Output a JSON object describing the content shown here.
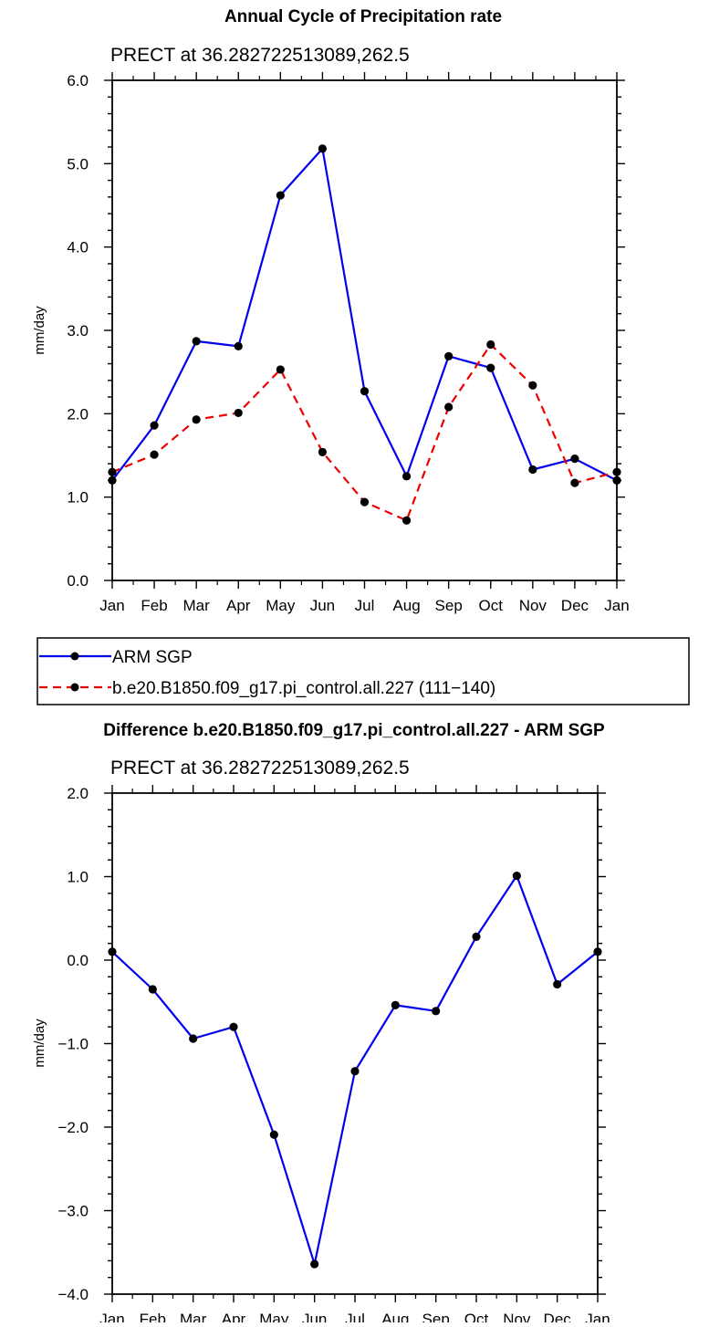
{
  "chart_data": [
    {
      "type": "line",
      "title": "Annual Cycle of Precipitation rate",
      "subtitle": "PRECT at 36.282722513089,262.5",
      "xlabel": "",
      "ylabel": "mm/day",
      "categories": [
        "Jan",
        "Feb",
        "Mar",
        "Apr",
        "May",
        "Jun",
        "Jul",
        "Aug",
        "Sep",
        "Oct",
        "Nov",
        "Dec",
        "Jan"
      ],
      "ylim": [
        0.0,
        6.0
      ],
      "yticks": [
        "0.0",
        "1.0",
        "2.0",
        "3.0",
        "4.0",
        "5.0",
        "6.0"
      ],
      "series": [
        {
          "name": "ARM SGP",
          "color": "#0000ee",
          "dashed": false,
          "values": [
            1.2,
            1.86,
            2.87,
            2.81,
            4.62,
            5.18,
            2.27,
            1.25,
            2.69,
            2.55,
            1.33,
            1.46,
            1.2
          ]
        },
        {
          "name": "b.e20.B1850.f09_g17.pi_control.all.227 (111−140)",
          "color": "#ee0000",
          "dashed": true,
          "values": [
            1.3,
            1.51,
            1.93,
            2.01,
            2.53,
            1.54,
            0.94,
            0.72,
            2.08,
            2.83,
            2.34,
            1.17,
            1.3
          ]
        }
      ],
      "legend": "below"
    },
    {
      "type": "line",
      "title": "Difference b.e20.B1850.f09_g17.pi_control.all.227 - ARM SGP",
      "subtitle": "PRECT at 36.282722513089,262.5",
      "xlabel": "",
      "ylabel": "mm/day",
      "categories": [
        "Jan",
        "Feb",
        "Mar",
        "Apr",
        "May",
        "Jun",
        "Jul",
        "Aug",
        "Sep",
        "Oct",
        "Nov",
        "Dec",
        "Jan"
      ],
      "ylim": [
        -4.0,
        2.0
      ],
      "yticks": [
        "−4.0",
        "−3.0",
        "−2.0",
        "−1.0",
        "0.0",
        "1.0",
        "2.0"
      ],
      "series": [
        {
          "name": "Difference",
          "color": "#0000ee",
          "dashed": false,
          "values": [
            0.1,
            -0.35,
            -0.94,
            -0.8,
            -2.09,
            -3.64,
            -1.33,
            -0.54,
            -0.61,
            0.28,
            1.01,
            -0.29,
            0.1
          ]
        }
      ]
    }
  ]
}
